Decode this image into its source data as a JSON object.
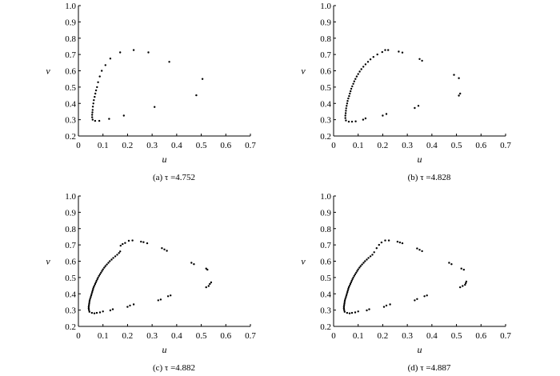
{
  "chart_data": [
    {
      "type": "scatter",
      "caption": "(a)  τ =4.752",
      "xlabel": "u",
      "ylabel": "v",
      "xlim": [
        0,
        0.7
      ],
      "ylim": [
        0.2,
        1.0
      ],
      "xticks": [
        "0",
        "0.1",
        "0.2",
        "0.3",
        "0.4",
        "0.5",
        "0.6",
        "0.7"
      ],
      "yticks": [
        "0.2",
        "0.3",
        "0.4",
        "0.5",
        "0.6",
        "0.7",
        "0.8",
        "0.9",
        "1.0"
      ],
      "grid": false,
      "points": [
        [
          0.058,
          0.3
        ],
        [
          0.056,
          0.315
        ],
        [
          0.056,
          0.33
        ],
        [
          0.057,
          0.345
        ],
        [
          0.058,
          0.36
        ],
        [
          0.059,
          0.38
        ],
        [
          0.061,
          0.4
        ],
        [
          0.063,
          0.42
        ],
        [
          0.066,
          0.44
        ],
        [
          0.069,
          0.46
        ],
        [
          0.072,
          0.48
        ],
        [
          0.076,
          0.5
        ],
        [
          0.08,
          0.53
        ],
        [
          0.087,
          0.565
        ],
        [
          0.095,
          0.6
        ],
        [
          0.11,
          0.635
        ],
        [
          0.13,
          0.675
        ],
        [
          0.17,
          0.713
        ],
        [
          0.225,
          0.727
        ],
        [
          0.285,
          0.713
        ],
        [
          0.37,
          0.655
        ],
        [
          0.505,
          0.55
        ],
        [
          0.48,
          0.45
        ],
        [
          0.31,
          0.378
        ],
        [
          0.185,
          0.325
        ],
        [
          0.125,
          0.305
        ],
        [
          0.085,
          0.293
        ],
        [
          0.068,
          0.293
        ]
      ]
    },
    {
      "type": "scatter",
      "caption": "(b)  τ =4.828",
      "xlabel": "u",
      "ylabel": "v",
      "xlim": [
        0,
        0.7
      ],
      "ylim": [
        0.2,
        1.0
      ],
      "xticks": [
        "0",
        "0.1",
        "0.2",
        "0.3",
        "0.4",
        "0.5",
        "0.6",
        "0.7"
      ],
      "yticks": [
        "0.2",
        "0.3",
        "0.4",
        "0.5",
        "0.6",
        "0.7",
        "0.8",
        "0.9",
        "1.0"
      ],
      "grid": false,
      "points": [
        [
          0.05,
          0.295
        ],
        [
          0.048,
          0.31
        ],
        [
          0.048,
          0.325
        ],
        [
          0.049,
          0.34
        ],
        [
          0.05,
          0.355
        ],
        [
          0.051,
          0.37
        ],
        [
          0.053,
          0.385
        ],
        [
          0.055,
          0.4
        ],
        [
          0.057,
          0.415
        ],
        [
          0.06,
          0.43
        ],
        [
          0.063,
          0.445
        ],
        [
          0.066,
          0.46
        ],
        [
          0.069,
          0.475
        ],
        [
          0.072,
          0.49
        ],
        [
          0.076,
          0.505
        ],
        [
          0.08,
          0.52
        ],
        [
          0.084,
          0.535
        ],
        [
          0.089,
          0.55
        ],
        [
          0.094,
          0.565
        ],
        [
          0.1,
          0.58
        ],
        [
          0.106,
          0.595
        ],
        [
          0.113,
          0.61
        ],
        [
          0.121,
          0.625
        ],
        [
          0.13,
          0.64
        ],
        [
          0.14,
          0.655
        ],
        [
          0.15,
          0.67
        ],
        [
          0.162,
          0.685
        ],
        [
          0.178,
          0.7
        ],
        [
          0.198,
          0.715
        ],
        [
          0.21,
          0.727
        ],
        [
          0.222,
          0.727
        ],
        [
          0.265,
          0.718
        ],
        [
          0.28,
          0.712
        ],
        [
          0.35,
          0.672
        ],
        [
          0.36,
          0.662
        ],
        [
          0.49,
          0.575
        ],
        [
          0.51,
          0.555
        ],
        [
          0.515,
          0.46
        ],
        [
          0.51,
          0.448
        ],
        [
          0.345,
          0.385
        ],
        [
          0.33,
          0.372
        ],
        [
          0.215,
          0.335
        ],
        [
          0.2,
          0.325
        ],
        [
          0.13,
          0.308
        ],
        [
          0.12,
          0.3
        ],
        [
          0.09,
          0.29
        ],
        [
          0.075,
          0.288
        ],
        [
          0.062,
          0.288
        ]
      ]
    },
    {
      "type": "scatter",
      "caption": "(c)  τ =4.882",
      "xlabel": "u",
      "ylabel": "v",
      "xlim": [
        0,
        0.7
      ],
      "ylim": [
        0.2,
        1.0
      ],
      "xticks": [
        "0",
        "0.1",
        "0.2",
        "0.3",
        "0.4",
        "0.5",
        "0.6",
        "0.7"
      ],
      "yticks": [
        "0.2",
        "0.3",
        "0.4",
        "0.5",
        "0.6",
        "0.7",
        "0.8",
        "0.9",
        "1.0"
      ],
      "grid": false,
      "points": [
        [
          0.045,
          0.29
        ],
        [
          0.043,
          0.3
        ],
        [
          0.042,
          0.31
        ],
        [
          0.042,
          0.32
        ],
        [
          0.043,
          0.33
        ],
        [
          0.044,
          0.34
        ],
        [
          0.045,
          0.35
        ],
        [
          0.046,
          0.36
        ],
        [
          0.048,
          0.37
        ],
        [
          0.05,
          0.38
        ],
        [
          0.052,
          0.39
        ],
        [
          0.054,
          0.4
        ],
        [
          0.056,
          0.41
        ],
        [
          0.058,
          0.42
        ],
        [
          0.06,
          0.43
        ],
        [
          0.062,
          0.44
        ],
        [
          0.065,
          0.45
        ],
        [
          0.068,
          0.46
        ],
        [
          0.071,
          0.47
        ],
        [
          0.074,
          0.48
        ],
        [
          0.077,
          0.49
        ],
        [
          0.08,
          0.5
        ],
        [
          0.084,
          0.51
        ],
        [
          0.088,
          0.52
        ],
        [
          0.092,
          0.53
        ],
        [
          0.096,
          0.54
        ],
        [
          0.1,
          0.55
        ],
        [
          0.105,
          0.56
        ],
        [
          0.11,
          0.57
        ],
        [
          0.116,
          0.58
        ],
        [
          0.122,
          0.59
        ],
        [
          0.128,
          0.6
        ],
        [
          0.135,
          0.61
        ],
        [
          0.142,
          0.62
        ],
        [
          0.15,
          0.63
        ],
        [
          0.158,
          0.64
        ],
        [
          0.165,
          0.65
        ],
        [
          0.17,
          0.66
        ],
        [
          0.172,
          0.695
        ],
        [
          0.18,
          0.705
        ],
        [
          0.19,
          0.712
        ],
        [
          0.205,
          0.725
        ],
        [
          0.22,
          0.727
        ],
        [
          0.255,
          0.72
        ],
        [
          0.265,
          0.717
        ],
        [
          0.28,
          0.71
        ],
        [
          0.34,
          0.68
        ],
        [
          0.35,
          0.672
        ],
        [
          0.36,
          0.664
        ],
        [
          0.46,
          0.59
        ],
        [
          0.47,
          0.582
        ],
        [
          0.52,
          0.555
        ],
        [
          0.525,
          0.548
        ],
        [
          0.54,
          0.47
        ],
        [
          0.535,
          0.46
        ],
        [
          0.53,
          0.448
        ],
        [
          0.52,
          0.44
        ],
        [
          0.375,
          0.39
        ],
        [
          0.365,
          0.385
        ],
        [
          0.335,
          0.365
        ],
        [
          0.325,
          0.36
        ],
        [
          0.225,
          0.335
        ],
        [
          0.21,
          0.328
        ],
        [
          0.2,
          0.32
        ],
        [
          0.14,
          0.305
        ],
        [
          0.13,
          0.298
        ],
        [
          0.1,
          0.292
        ],
        [
          0.088,
          0.286
        ],
        [
          0.075,
          0.283
        ],
        [
          0.065,
          0.28
        ],
        [
          0.055,
          0.283
        ]
      ]
    },
    {
      "type": "scatter",
      "caption": "(d)  τ =4.887",
      "xlabel": "u",
      "ylabel": "v",
      "xlim": [
        0,
        0.7
      ],
      "ylim": [
        0.2,
        1.0
      ],
      "xticks": [
        "0",
        "0.1",
        "0.2",
        "0.3",
        "0.4",
        "0.5",
        "0.6",
        "0.7"
      ],
      "yticks": [
        "0.2",
        "0.3",
        "0.4",
        "0.5",
        "0.6",
        "0.7",
        "0.8",
        "0.9",
        "1.0"
      ],
      "grid": false,
      "points": [
        [
          0.045,
          0.29
        ],
        [
          0.043,
          0.3
        ],
        [
          0.042,
          0.31
        ],
        [
          0.042,
          0.32
        ],
        [
          0.043,
          0.33
        ],
        [
          0.044,
          0.34
        ],
        [
          0.045,
          0.35
        ],
        [
          0.046,
          0.36
        ],
        [
          0.048,
          0.37
        ],
        [
          0.05,
          0.38
        ],
        [
          0.052,
          0.39
        ],
        [
          0.054,
          0.4
        ],
        [
          0.056,
          0.41
        ],
        [
          0.058,
          0.42
        ],
        [
          0.06,
          0.43
        ],
        [
          0.062,
          0.44
        ],
        [
          0.065,
          0.45
        ],
        [
          0.068,
          0.46
        ],
        [
          0.071,
          0.47
        ],
        [
          0.074,
          0.48
        ],
        [
          0.077,
          0.49
        ],
        [
          0.08,
          0.5
        ],
        [
          0.084,
          0.51
        ],
        [
          0.088,
          0.52
        ],
        [
          0.092,
          0.53
        ],
        [
          0.096,
          0.54
        ],
        [
          0.1,
          0.55
        ],
        [
          0.105,
          0.56
        ],
        [
          0.11,
          0.57
        ],
        [
          0.116,
          0.58
        ],
        [
          0.122,
          0.59
        ],
        [
          0.128,
          0.6
        ],
        [
          0.135,
          0.61
        ],
        [
          0.142,
          0.62
        ],
        [
          0.15,
          0.63
        ],
        [
          0.158,
          0.64
        ],
        [
          0.165,
          0.655
        ],
        [
          0.175,
          0.68
        ],
        [
          0.185,
          0.7
        ],
        [
          0.195,
          0.715
        ],
        [
          0.21,
          0.727
        ],
        [
          0.225,
          0.727
        ],
        [
          0.26,
          0.72
        ],
        [
          0.27,
          0.715
        ],
        [
          0.28,
          0.71
        ],
        [
          0.34,
          0.678
        ],
        [
          0.35,
          0.67
        ],
        [
          0.36,
          0.662
        ],
        [
          0.47,
          0.59
        ],
        [
          0.48,
          0.582
        ],
        [
          0.52,
          0.555
        ],
        [
          0.53,
          0.548
        ],
        [
          0.54,
          0.475
        ],
        [
          0.538,
          0.465
        ],
        [
          0.535,
          0.455
        ],
        [
          0.525,
          0.448
        ],
        [
          0.515,
          0.44
        ],
        [
          0.38,
          0.39
        ],
        [
          0.37,
          0.385
        ],
        [
          0.34,
          0.368
        ],
        [
          0.33,
          0.36
        ],
        [
          0.23,
          0.335
        ],
        [
          0.215,
          0.328
        ],
        [
          0.205,
          0.32
        ],
        [
          0.145,
          0.305
        ],
        [
          0.135,
          0.298
        ],
        [
          0.1,
          0.292
        ],
        [
          0.088,
          0.286
        ],
        [
          0.075,
          0.283
        ],
        [
          0.065,
          0.28
        ],
        [
          0.055,
          0.283
        ]
      ]
    }
  ]
}
